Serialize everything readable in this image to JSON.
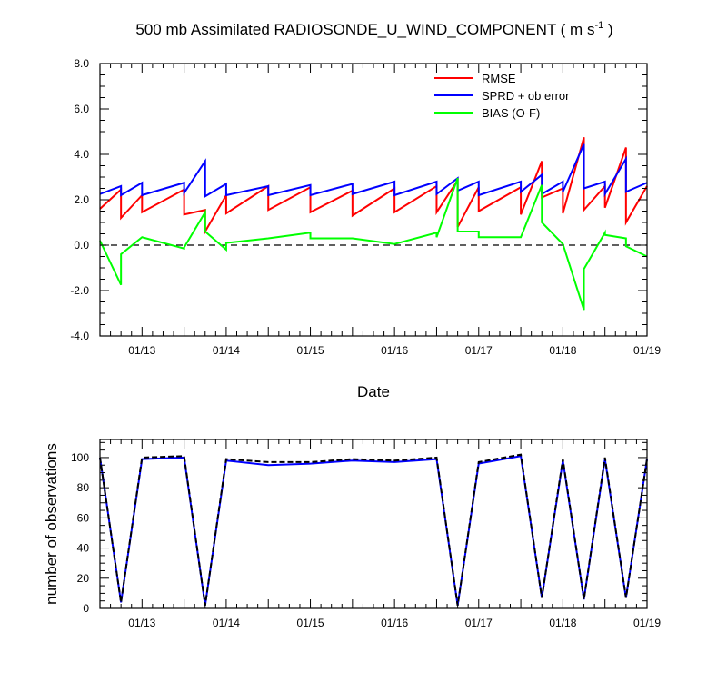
{
  "chart_data": [
    {
      "type": "line",
      "title": "500 mb Assimilated RADIOSONDE_U_WIND_COMPONENT ( m s",
      "title_superscript": "-1",
      "title_close": " )",
      "xlabel": "Date",
      "ylabel": "",
      "xlim": [
        12.5,
        19.0
      ],
      "ylim": [
        -4.0,
        8.0
      ],
      "x_ticks": [
        13,
        14,
        15,
        16,
        17,
        18,
        19
      ],
      "x_tick_labels": [
        "01/13",
        "01/14",
        "01/15",
        "01/16",
        "01/17",
        "01/18",
        "01/19"
      ],
      "y_ticks": [
        -4,
        -2,
        0,
        2,
        4,
        6,
        8
      ],
      "y_tick_labels": [
        "-4.0",
        "-2.0",
        "0.0",
        "2.0",
        "4.0",
        "6.0",
        "8.0"
      ],
      "zero_line": "dashed",
      "legend_position": "top-right",
      "series": [
        {
          "name": "RMSE",
          "color": "#ff0000",
          "points": [
            [
              12.5,
              1.6
            ],
            [
              12.75,
              2.45
            ],
            [
              12.75,
              1.2
            ],
            [
              13.0,
              2.2
            ],
            [
              13.0,
              1.45
            ],
            [
              13.5,
              2.45
            ],
            [
              13.5,
              1.35
            ],
            [
              13.75,
              1.55
            ],
            [
              13.75,
              0.6
            ],
            [
              14.0,
              2.2
            ],
            [
              14.0,
              1.4
            ],
            [
              14.5,
              2.6
            ],
            [
              14.5,
              1.55
            ],
            [
              15.0,
              2.55
            ],
            [
              15.0,
              1.45
            ],
            [
              15.5,
              2.4
            ],
            [
              15.5,
              1.3
            ],
            [
              16.0,
              2.5
            ],
            [
              16.0,
              1.45
            ],
            [
              16.5,
              2.6
            ],
            [
              16.5,
              1.45
            ],
            [
              16.75,
              2.85
            ],
            [
              16.75,
              0.8
            ],
            [
              17.0,
              2.55
            ],
            [
              17.0,
              1.5
            ],
            [
              17.5,
              2.55
            ],
            [
              17.5,
              1.35
            ],
            [
              17.75,
              3.7
            ],
            [
              17.75,
              2.1
            ],
            [
              18.0,
              2.5
            ],
            [
              18.0,
              1.4
            ],
            [
              18.25,
              4.75
            ],
            [
              18.25,
              1.55
            ],
            [
              18.5,
              2.6
            ],
            [
              18.5,
              1.65
            ],
            [
              18.75,
              4.3
            ],
            [
              18.75,
              1.0
            ],
            [
              19.0,
              2.6
            ]
          ]
        },
        {
          "name": "SPRD + ob error",
          "color": "#0000ff",
          "points": [
            [
              12.5,
              2.25
            ],
            [
              12.75,
              2.6
            ],
            [
              12.75,
              2.2
            ],
            [
              13.0,
              2.75
            ],
            [
              13.0,
              2.2
            ],
            [
              13.5,
              2.75
            ],
            [
              13.5,
              2.3
            ],
            [
              13.75,
              3.7
            ],
            [
              13.75,
              2.15
            ],
            [
              14.0,
              2.7
            ],
            [
              14.0,
              2.2
            ],
            [
              14.5,
              2.6
            ],
            [
              14.5,
              2.2
            ],
            [
              15.0,
              2.65
            ],
            [
              15.0,
              2.2
            ],
            [
              15.5,
              2.7
            ],
            [
              15.5,
              2.25
            ],
            [
              16.0,
              2.8
            ],
            [
              16.0,
              2.2
            ],
            [
              16.5,
              2.8
            ],
            [
              16.5,
              2.25
            ],
            [
              16.75,
              2.95
            ],
            [
              16.75,
              2.4
            ],
            [
              17.0,
              2.8
            ],
            [
              17.0,
              2.2
            ],
            [
              17.5,
              2.8
            ],
            [
              17.5,
              2.35
            ],
            [
              17.75,
              3.1
            ],
            [
              17.75,
              2.25
            ],
            [
              18.0,
              2.8
            ],
            [
              18.0,
              2.35
            ],
            [
              18.25,
              4.45
            ],
            [
              18.25,
              2.5
            ],
            [
              18.5,
              2.8
            ],
            [
              18.5,
              2.25
            ],
            [
              18.75,
              3.8
            ],
            [
              18.75,
              2.35
            ],
            [
              19.0,
              2.75
            ]
          ]
        },
        {
          "name": "BIAS (O-F)",
          "color": "#00ff00",
          "points": [
            [
              12.5,
              0.2
            ],
            [
              12.75,
              -1.75
            ],
            [
              12.75,
              -0.4
            ],
            [
              13.0,
              0.35
            ],
            [
              13.0,
              0.35
            ],
            [
              13.5,
              -0.15
            ],
            [
              13.5,
              -0.1
            ],
            [
              13.75,
              1.45
            ],
            [
              13.75,
              0.6
            ],
            [
              14.0,
              -0.2
            ],
            [
              14.0,
              0.1
            ],
            [
              14.5,
              0.3
            ],
            [
              15.0,
              0.55
            ],
            [
              15.0,
              0.3
            ],
            [
              15.5,
              0.3
            ],
            [
              16.0,
              0.05
            ],
            [
              16.5,
              0.55
            ],
            [
              16.5,
              0.35
            ],
            [
              16.75,
              2.95
            ],
            [
              16.75,
              0.6
            ],
            [
              17.0,
              0.6
            ],
            [
              17.0,
              0.35
            ],
            [
              17.5,
              0.35
            ],
            [
              17.75,
              2.65
            ],
            [
              17.75,
              1.0
            ],
            [
              18.0,
              0.05
            ],
            [
              18.0,
              0.05
            ],
            [
              18.25,
              -2.85
            ],
            [
              18.25,
              -1.05
            ],
            [
              18.5,
              0.55
            ],
            [
              18.5,
              0.45
            ],
            [
              18.75,
              0.3
            ],
            [
              18.75,
              -0.05
            ],
            [
              19.0,
              -0.5
            ]
          ]
        }
      ]
    },
    {
      "type": "line",
      "title": "",
      "xlabel": "",
      "ylabel": "number of observations",
      "xlim": [
        12.5,
        19.0
      ],
      "ylim": [
        0,
        112
      ],
      "x_ticks": [
        13,
        14,
        15,
        16,
        17,
        18,
        19
      ],
      "x_tick_labels": [
        "01/13",
        "01/14",
        "01/15",
        "01/16",
        "01/17",
        "01/18",
        "01/19"
      ],
      "y_ticks": [
        0,
        20,
        40,
        60,
        80,
        100
      ],
      "y_tick_labels": [
        "0",
        "20",
        "40",
        "60",
        "80",
        "100"
      ],
      "series": [
        {
          "color": "#0000ff",
          "dash": "solid",
          "points": [
            [
              12.5,
              100
            ],
            [
              12.75,
              4
            ],
            [
              13.0,
              99
            ],
            [
              13.5,
              100
            ],
            [
              13.75,
              2
            ],
            [
              14.0,
              98
            ],
            [
              14.5,
              95
            ],
            [
              15.0,
              96
            ],
            [
              15.5,
              98
            ],
            [
              16.0,
              97
            ],
            [
              16.5,
              99
            ],
            [
              16.75,
              2
            ],
            [
              17.0,
              96
            ],
            [
              17.5,
              101
            ],
            [
              17.75,
              7
            ],
            [
              18.0,
              98
            ],
            [
              18.25,
              6
            ],
            [
              18.5,
              99
            ],
            [
              18.75,
              7
            ],
            [
              19.0,
              99
            ]
          ]
        },
        {
          "color": "#000000",
          "dash": "dashed",
          "points": [
            [
              12.5,
              100
            ],
            [
              12.75,
              4
            ],
            [
              13.0,
              100
            ],
            [
              13.5,
              101
            ],
            [
              13.75,
              2
            ],
            [
              14.0,
              99
            ],
            [
              14.5,
              97
            ],
            [
              15.0,
              97
            ],
            [
              15.5,
              99
            ],
            [
              16.0,
              98
            ],
            [
              16.5,
              100
            ],
            [
              16.75,
              2
            ],
            [
              17.0,
              97
            ],
            [
              17.5,
              102
            ],
            [
              17.75,
              7
            ],
            [
              18.0,
              99
            ],
            [
              18.25,
              6
            ],
            [
              18.5,
              100
            ],
            [
              18.75,
              7
            ],
            [
              19.0,
              99
            ]
          ]
        }
      ]
    }
  ]
}
